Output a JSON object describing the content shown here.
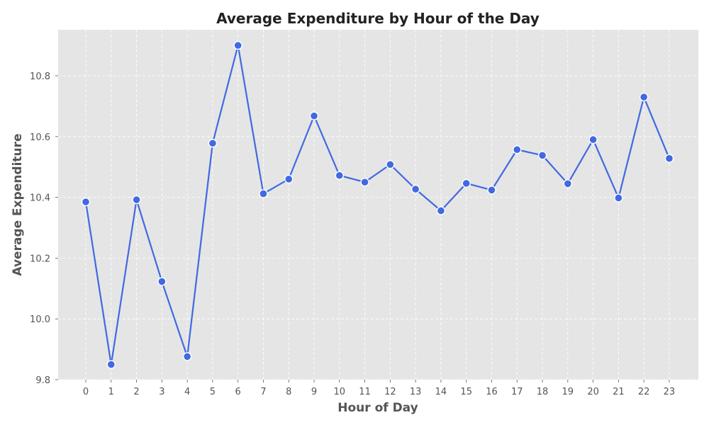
{
  "chart_data": {
    "type": "line",
    "title": "Average Expenditure by Hour of the Day",
    "xlabel": "Hour of Day",
    "ylabel": "Average Expenditure",
    "x": [
      0,
      1,
      2,
      3,
      4,
      5,
      6,
      7,
      8,
      9,
      10,
      11,
      12,
      13,
      14,
      15,
      16,
      17,
      18,
      19,
      20,
      21,
      22,
      23
    ],
    "x_tick_labels": [
      "0",
      "1",
      "2",
      "3",
      "4",
      "5",
      "6",
      "7",
      "8",
      "9",
      "10",
      "11",
      "12",
      "13",
      "14",
      "15",
      "16",
      "17",
      "18",
      "19",
      "20",
      "21",
      "22",
      "23"
    ],
    "series": [
      {
        "name": "Average Expenditure",
        "values": [
          10.385,
          9.85,
          10.392,
          10.123,
          9.876,
          10.578,
          10.9,
          10.412,
          10.46,
          10.668,
          10.472,
          10.45,
          10.508,
          10.427,
          10.356,
          10.446,
          10.424,
          10.557,
          10.538,
          10.445,
          10.59,
          10.398,
          10.73,
          10.528
        ]
      }
    ],
    "ylim": [
      9.8,
      10.95
    ],
    "y_ticks": [
      9.8,
      10.0,
      10.2,
      10.4,
      10.6,
      10.8
    ],
    "y_tick_labels": [
      "9.8",
      "10.0",
      "10.2",
      "10.4",
      "10.6",
      "10.8"
    ],
    "grid": true,
    "colors": {
      "line": "#4169e1",
      "marker_edge": "#ffffff",
      "plot_background": "#e5e5e5",
      "grid": "#ffffff"
    }
  }
}
